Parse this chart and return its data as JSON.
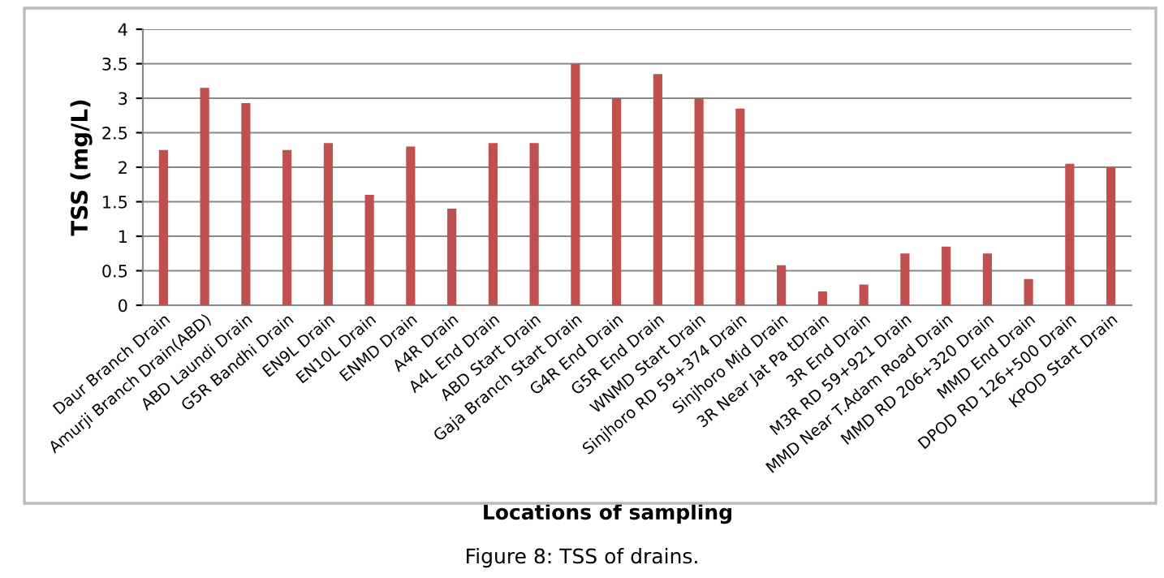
{
  "chart_data": {
    "type": "bar",
    "categories": [
      "Daur Branch Drain",
      "Amurji Branch Drain(ABD)",
      "ABD Laundi Drain",
      "G5R Bandhi Drain",
      "EN9L Drain",
      "EN10L Drain",
      "ENMD Drain",
      "A4R Drain",
      "A4L End Drain",
      "ABD Start Drain",
      "Gaja Branch Start Drain",
      "G4R End Drain",
      "G5R End Drain",
      "WNMD Start Drain",
      "Sinjhoro RD 59+374 Drain",
      "Sinjhoro Mid Drain",
      "3R Near Jat Pa tDrain",
      "3R End Drain",
      "M3R RD 59+921 Drain",
      "MMD Near T.Adam Road Drain",
      "MMD RD 206+320 Drain",
      "MMD End Drain",
      "DPOD RD 126+500 Drain",
      "KPOD Start Drain"
    ],
    "values": [
      2.25,
      3.15,
      2.93,
      2.25,
      2.35,
      1.6,
      2.3,
      1.4,
      2.35,
      2.35,
      3.5,
      3.0,
      3.35,
      3.0,
      2.85,
      0.58,
      0.2,
      0.3,
      0.75,
      0.85,
      0.75,
      0.38,
      2.05,
      2.0
    ],
    "color": "#c0504d",
    "ylabel": "TSS (mg/L)",
    "xlabel": "Locations of sampling",
    "ylim": [
      0,
      4
    ],
    "yticks": [
      0,
      0.5,
      1,
      1.5,
      2,
      2.5,
      3,
      3.5,
      4
    ],
    "grid": "y",
    "annotations": [
      "Figure 8: TSS of drains."
    ]
  }
}
